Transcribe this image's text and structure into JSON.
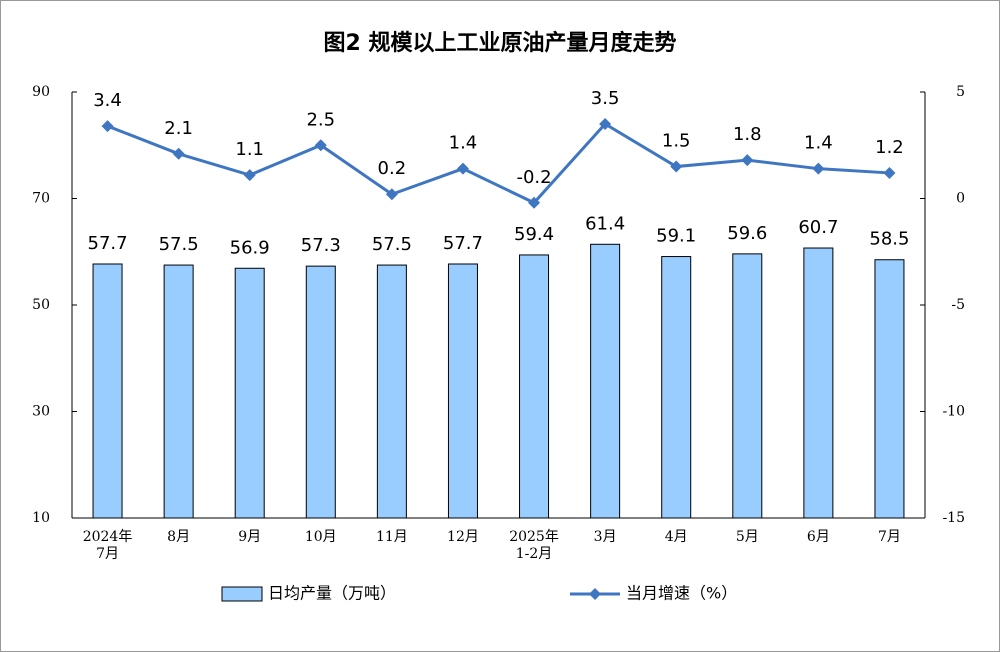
{
  "chart_data": {
    "type": "bar",
    "title": "图2  规模以上工业原油产量月度走势",
    "categories": [
      "2024年\n7月",
      "8月",
      "9月",
      "10月",
      "11月",
      "12月",
      "2025年\n1-2月",
      "3月",
      "4月",
      "5月",
      "6月",
      "7月"
    ],
    "series": [
      {
        "name": "日均产量（万吨）",
        "type": "bar",
        "color": "#99ccff",
        "values": [
          57.7,
          57.5,
          56.9,
          57.3,
          57.5,
          57.7,
          59.4,
          61.4,
          59.1,
          59.6,
          60.7,
          58.5
        ]
      },
      {
        "name": "当月增速（%）",
        "type": "line",
        "axis": "y2",
        "color": "#3f76c2",
        "values": [
          3.4,
          2.1,
          1.1,
          2.5,
          0.2,
          1.4,
          -0.2,
          3.5,
          1.5,
          1.8,
          1.4,
          1.2
        ]
      }
    ],
    "ylim": [
      10,
      90
    ],
    "yticks": [
      10,
      30,
      50,
      70,
      90
    ],
    "y2lim": [
      -15,
      5
    ],
    "y2ticks": [
      -15,
      -10,
      -5,
      0,
      5
    ],
    "grid": false,
    "legend": "bottom"
  }
}
